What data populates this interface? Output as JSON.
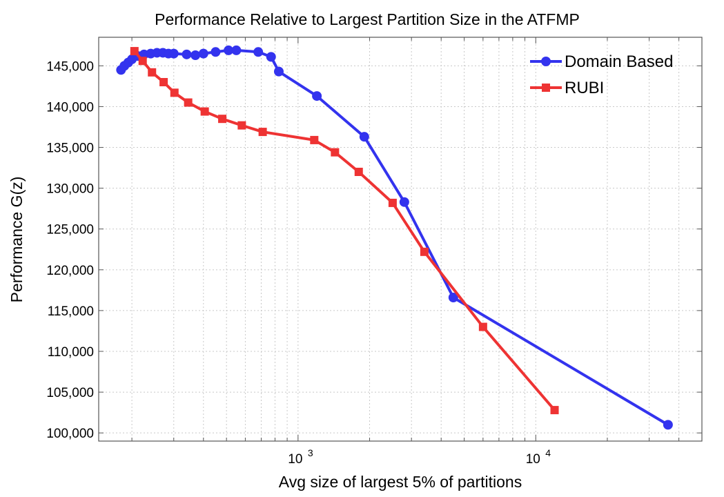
{
  "chart_data": {
    "type": "line",
    "title": "Performance Relative to Largest Partition Size in the ATFMP",
    "xlabel": "Avg size of largest 5% of partitions",
    "ylabel": "Performance G(z)",
    "x_scale": "log",
    "xlim": [
      145,
      50000
    ],
    "ylim": [
      99000,
      148500
    ],
    "y_ticks": [
      100000,
      105000,
      110000,
      115000,
      120000,
      125000,
      130000,
      135000,
      140000,
      145000
    ],
    "y_tick_labels": [
      "100,000",
      "105,000",
      "110,000",
      "115,000",
      "120,000",
      "125,000",
      "130,000",
      "135,000",
      "140,000",
      "145,000"
    ],
    "x_ticks": [
      1000,
      10000
    ],
    "x_tick_labels": [
      {
        "base": "10",
        "exp": "3"
      },
      {
        "base": "10",
        "exp": "4"
      }
    ],
    "grid": true,
    "legend_position": "top-right",
    "series": [
      {
        "name": "Domain Based",
        "color": "#3333ee",
        "marker": "circle",
        "x": [
          180,
          186,
          193,
          200,
          212,
          225,
          240,
          255,
          270,
          285,
          300,
          340,
          370,
          400,
          450,
          510,
          550,
          680,
          770,
          830,
          1200,
          1900,
          2800,
          4500,
          36000
        ],
        "y": [
          144500,
          145000,
          145400,
          145800,
          146200,
          146400,
          146500,
          146600,
          146600,
          146500,
          146500,
          146400,
          146300,
          146500,
          146700,
          146900,
          146900,
          146700,
          146100,
          144300,
          141300,
          136300,
          128300,
          116600,
          101000
        ]
      },
      {
        "name": "RUBI",
        "color": "#ee3333",
        "marker": "square",
        "x": [
          205,
          222,
          243,
          272,
          302,
          345,
          405,
          480,
          580,
          710,
          1170,
          1430,
          1800,
          2500,
          3400,
          6000,
          12000
        ],
        "y": [
          146800,
          145600,
          144200,
          143000,
          141700,
          140500,
          139400,
          138500,
          137700,
          136900,
          135900,
          134400,
          132000,
          128200,
          122200,
          113000,
          102800
        ]
      }
    ]
  }
}
